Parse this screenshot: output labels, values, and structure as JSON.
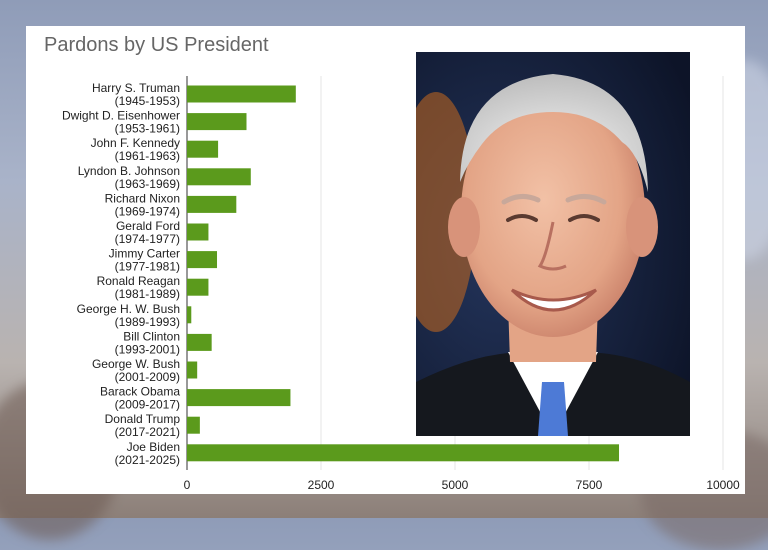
{
  "chart_data": {
    "type": "bar",
    "orientation": "horizontal",
    "title": "Pardons by US President",
    "categories": [
      [
        "Harry S. Truman",
        "(1945-1953)"
      ],
      [
        "Dwight D. Eisenhower",
        "(1953-1961)"
      ],
      [
        "John F. Kennedy",
        "(1961-1963)"
      ],
      [
        "Lyndon B. Johnson",
        "(1963-1969)"
      ],
      [
        "Richard Nixon",
        "(1969-1974)"
      ],
      [
        "Gerald Ford",
        "(1974-1977)"
      ],
      [
        "Jimmy Carter",
        "(1977-1981)"
      ],
      [
        "Ronald Reagan",
        "(1981-1989)"
      ],
      [
        "George H. W. Bush",
        "(1989-1993)"
      ],
      [
        "Bill Clinton",
        "(1993-2001)"
      ],
      [
        "George W. Bush",
        "(2001-2009)"
      ],
      [
        "Barack Obama",
        "(2009-2017)"
      ],
      [
        "Donald Trump",
        "(2017-2021)"
      ],
      [
        "Joe Biden",
        "(2021-2025)"
      ]
    ],
    "values": [
      2030,
      1110,
      580,
      1190,
      920,
      400,
      560,
      400,
      80,
      460,
      190,
      1930,
      240,
      8060
    ],
    "xlim": [
      0,
      10000
    ],
    "xticks": [
      0,
      2500,
      5000,
      7500,
      10000
    ],
    "xtick_labels": [
      "0",
      "2500",
      "5000",
      "7500",
      "10000"
    ],
    "grid": "vertical",
    "bar_color": "#5b9a1c"
  },
  "photo": {
    "description_icon": "portrait-photo",
    "bg_color": "#1c2a47",
    "suit_color": "#1a1d24",
    "tie_color": "#4d7ad6"
  }
}
